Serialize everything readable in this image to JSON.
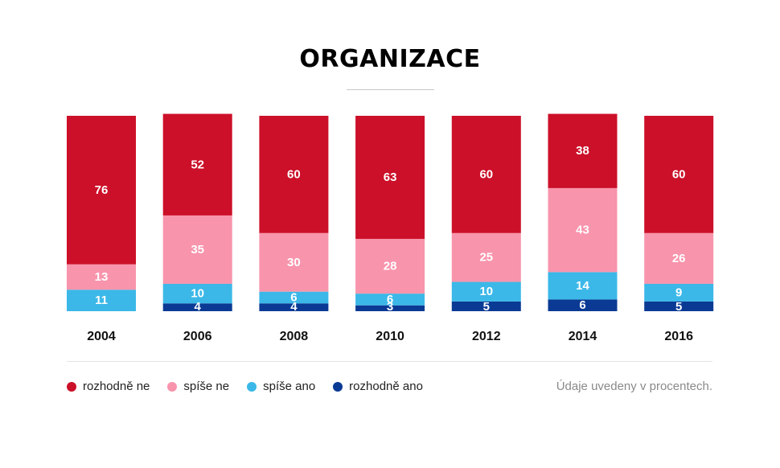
{
  "chart_data": {
    "type": "bar",
    "stacked": true,
    "title": "ORGANIZACE",
    "categories": [
      "2004",
      "2006",
      "2008",
      "2010",
      "2012",
      "2014",
      "2016"
    ],
    "series": [
      {
        "name": "rozhodně ano",
        "color": "#0a3a94",
        "values": [
          0,
          4,
          4,
          3,
          5,
          6,
          5
        ]
      },
      {
        "name": "spíše ano",
        "color": "#3bb8e8",
        "values": [
          11,
          10,
          6,
          6,
          10,
          14,
          9
        ]
      },
      {
        "name": "spíše ne",
        "color": "#f894ac",
        "values": [
          13,
          35,
          30,
          28,
          25,
          43,
          26
        ]
      },
      {
        "name": "rozhodně ne",
        "color": "#cc1029",
        "values": [
          76,
          52,
          60,
          63,
          60,
          38,
          60
        ]
      }
    ],
    "ylim": [
      0,
      100
    ],
    "legend_position": "bottom-left",
    "note": "Údaje uvedeny v procentech."
  },
  "legend": {
    "items": [
      {
        "label": "rozhodně ne",
        "color": "#cc1029"
      },
      {
        "label": "spíše ne",
        "color": "#f894ac"
      },
      {
        "label": "spíše ano",
        "color": "#3bb8e8"
      },
      {
        "label": "rozhodně ano",
        "color": "#0a3a94"
      }
    ]
  }
}
